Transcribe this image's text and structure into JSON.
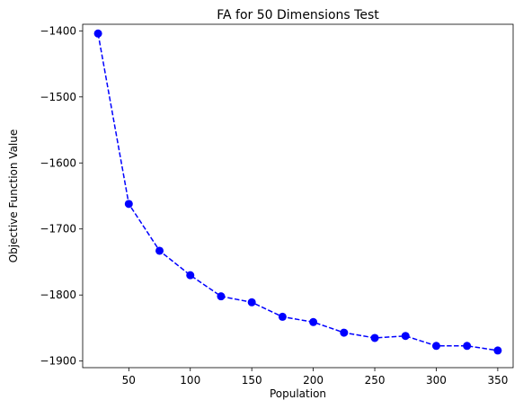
{
  "chart_data": {
    "type": "line",
    "title": "FA for 50 Dimensions Test",
    "xlabel": "Population",
    "ylabel": "Objective Function Value",
    "xlim": [
      12.5,
      362.5
    ],
    "ylim": [
      -1910,
      -1390
    ],
    "xticks": [
      50,
      100,
      150,
      200,
      250,
      300,
      350
    ],
    "yticks": [
      -1900,
      -1800,
      -1700,
      -1600,
      -1500,
      -1400
    ],
    "ytick_labels": [
      "−1900",
      "−1800",
      "−1700",
      "−1600",
      "−1500",
      "−1400"
    ],
    "grid": false,
    "series": [
      {
        "color": "#0000ff",
        "line_style": "dashed",
        "marker": "circle",
        "x": [
          25,
          50,
          75,
          100,
          125,
          150,
          175,
          200,
          225,
          250,
          275,
          300,
          325,
          350
        ],
        "y": [
          -1404,
          -1662,
          -1733,
          -1770,
          -1802,
          -1811,
          -1833,
          -1841,
          -1857,
          -1865,
          -1862,
          -1877,
          -1877,
          -1884
        ]
      }
    ]
  }
}
